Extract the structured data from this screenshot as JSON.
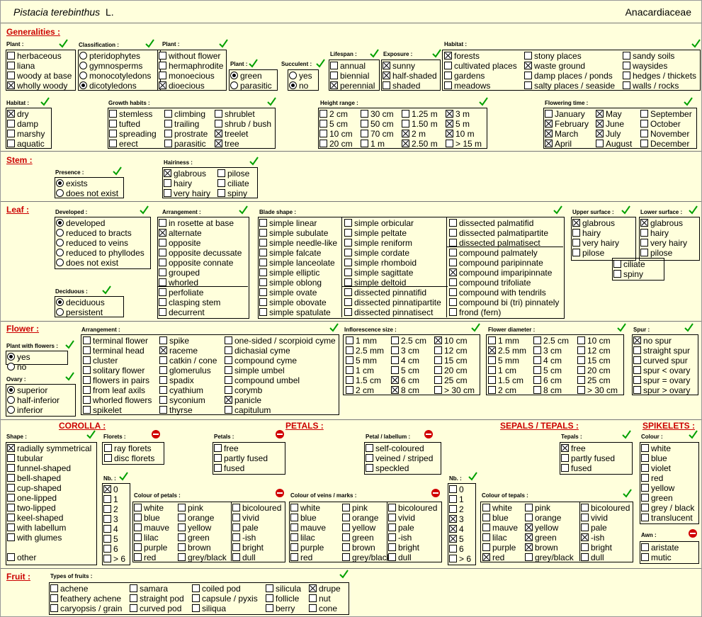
{
  "header": {
    "species": "Pistacia terebinthus",
    "author": "L.",
    "family": "Anacardiaceae"
  },
  "sections": {
    "generalities": "Generalities :",
    "stem": "Stem :",
    "leaf": "Leaf :",
    "flower": "Flower :",
    "fruit": "Fruit :",
    "corolla": "COROLLA :",
    "petals": "PETALS :",
    "sepals": "SEPALS / TEPALS :",
    "spikelets": "SPIKELETS :"
  },
  "labels": {
    "plant": "Plant :",
    "classification": "Classification :",
    "plant2": "Plant :",
    "plant3": "Plant :",
    "succulent": "Succulent :",
    "lifespan": "Lifespan :",
    "exposure": "Exposure :",
    "habitat": "Habitat :",
    "habitat2": "Habitat :",
    "growth": "Growth habits :",
    "height": "Height range :",
    "flowering": "Flowering time :",
    "presence": "Presence :",
    "hairiness": "Hairiness :",
    "developed": "Developed :",
    "arrangement": "Arrangement :",
    "blade": "Blade shape :",
    "upper": "Upper surface :",
    "lower": "Lower surface :",
    "deciduous": "Deciduous :",
    "withflowers": "Plant with flowers :",
    "ovary": "Ovary :",
    "farrangement": "Arrangement :",
    "inflsize": "Inflorescence size :",
    "fdiam": "Flower diameter :",
    "spur": "Spur :",
    "shape": "Shape :",
    "florets": "Florets :",
    "petals": "Petals :",
    "petallab": "Petal / labellum :",
    "tepals": "Tepals :",
    "colour": "Colour :",
    "awn": "Awn :",
    "nb": "Nb. :",
    "nb2": "Nb. :",
    "colpetals": "Colour of petals :",
    "colveins": "Colour of veins / marks :",
    "coltepals": "Colour of tepals :",
    "fruittypes": "Types of fruits :"
  },
  "items": {
    "plant1": [
      "herbaceous",
      "liana",
      "woody at base",
      "wholly woody"
    ],
    "classif": [
      "pteridophytes",
      "gymnosperms",
      "monocotyledons",
      "dicotyledons"
    ],
    "plant2": [
      "without flower",
      "hermaphrodite",
      "monoecious",
      "dioecious"
    ],
    "plant3": [
      "green",
      "parasitic"
    ],
    "succ": [
      "yes",
      "no"
    ],
    "life": [
      "annual",
      "biennial",
      "perennial"
    ],
    "expo": [
      "sunny",
      "half-shaded",
      "shaded"
    ],
    "hab1": [
      "forests",
      "cultivated places",
      "gardens",
      "meadows"
    ],
    "hab2": [
      "stony places",
      "waste ground",
      "damp places / ponds",
      "salty places / seaside"
    ],
    "hab3": [
      "sandy soils",
      "waysides",
      "hedges / thickets",
      "walls / rocks"
    ],
    "habB": [
      "dry",
      "damp",
      "marshy",
      "aquatic"
    ],
    "gr1": [
      "stemless",
      "tufted",
      "spreading",
      "erect"
    ],
    "gr2": [
      "climbing",
      "trailing",
      "prostrate",
      "parasitic"
    ],
    "gr3": [
      "shrublet",
      "shrub / bush",
      "treelet",
      "tree"
    ],
    "ht1": [
      "2 cm",
      "5 cm",
      "10 cm",
      "20 cm"
    ],
    "ht2": [
      "30 cm",
      "50 cm",
      "70 cm",
      "1 m"
    ],
    "ht3": [
      "1.25 m",
      "1.50 m",
      "2 m",
      "2.50 m"
    ],
    "ht4": [
      "3 m",
      "5 m",
      "10 m",
      "> 15 m"
    ],
    "fl1": [
      "January",
      "February",
      "March",
      "April"
    ],
    "fl2": [
      "May",
      "June",
      "July",
      "August"
    ],
    "fl3": [
      "September",
      "October",
      "November",
      "December"
    ],
    "presence": [
      "exists",
      "does not exist"
    ],
    "hair1": [
      "glabrous",
      "hairy",
      "very hairy"
    ],
    "hair2": [
      "pilose",
      "ciliate",
      "spiny"
    ],
    "dev": [
      "developed",
      "reduced to bracts",
      "reduced to veins",
      "reduced to phyllodes",
      "does not exist"
    ],
    "decid": [
      "deciduous",
      "persistent"
    ],
    "arr1": [
      "in rosette at base",
      "alternate",
      "opposite",
      "opposite decussate",
      "opposite connate",
      "grouped",
      "whorled"
    ],
    "arr2": [
      "perfoliate",
      "clasping stem",
      "decurrent"
    ],
    "bl1": [
      "simple linear",
      "simple subulate",
      "simple needle-like",
      "simple falcate",
      "simple lanceolate",
      "simple elliptic",
      "simple oblong",
      "simple ovate",
      "simple obovate",
      "simple spatulate"
    ],
    "bl2": [
      "simple orbicular",
      "simple peltate",
      "simple reniform",
      "simple cordate",
      "simple rhomboid",
      "simple sagittate",
      "simple deltoid"
    ],
    "bl2b": [
      "dissected pinnatifid",
      "dissected pinnatipartite",
      "dissected pinnatisect"
    ],
    "bl3": [
      "dissected palmatifid",
      "dissected palmatipartite",
      "dissected palmatisect"
    ],
    "bl3b": [
      "compound palmately",
      "compound paripinnate",
      "compound imparipinnate",
      "compound trifoliate",
      "compound with tendrils",
      "compound bi (tri) pinnately",
      "frond  (fern)"
    ],
    "upper": [
      "glabrous",
      "hairy",
      "very hairy",
      "pilose"
    ],
    "lower": [
      "glabrous",
      "hairy",
      "very hairy",
      "pilose"
    ],
    "ciliate": [
      "ciliate",
      "spiny"
    ],
    "wflowers": [
      "yes",
      "no"
    ],
    "ovary": [
      "superior",
      "half-inferior",
      "inferior"
    ],
    "fa1": [
      "terminal flower",
      "terminal head",
      "cluster",
      "solitary flower",
      "flowers in pairs",
      "from leaf axils",
      "whorled flowers",
      "spikelet"
    ],
    "fa2": [
      "spike",
      "raceme",
      "catkin / cone",
      "glomerulus",
      "spadix",
      "cyathium",
      "syconium",
      "thyrse"
    ],
    "fa3": [
      "one-sided / scorpioid cyme",
      "dichasial cyme",
      "compound cyme",
      "simple umbel",
      "compound umbel",
      "corymb",
      "panicle",
      "capitulum"
    ],
    "is1": [
      "1 mm",
      "2.5 mm",
      "5 mm",
      "1 cm",
      "1.5 cm",
      "2 cm"
    ],
    "is2": [
      "2.5 cm",
      "3 cm",
      "4 cm",
      "5 cm",
      "6 cm",
      "8 cm"
    ],
    "is3": [
      "10 cm",
      "12 cm",
      "15 cm",
      "20 cm",
      "25 cm",
      "> 30 cm"
    ],
    "fd1": [
      "1 mm",
      "2.5 mm",
      "5 mm",
      "1 cm",
      "1.5 cm",
      "2 cm"
    ],
    "fd2": [
      "2.5 cm",
      "3 cm",
      "4 cm",
      "5 cm",
      "6 cm",
      "8 cm"
    ],
    "fd3": [
      "10 cm",
      "12 cm",
      "15 cm",
      "20 cm",
      "25 cm",
      "> 30 cm"
    ],
    "spur": [
      "no spur",
      "straight spur",
      "curved spur",
      "spur < ovary",
      "spur = ovary",
      "spur > ovary"
    ],
    "shape": [
      "radially symmetrical",
      "tubular",
      "funnel-shaped",
      "bell-shaped",
      "cup-shaped",
      "one-lipped",
      "two-lipped",
      "keel-shaped",
      "with labellum",
      "with glumes"
    ],
    "shapeOther": "other",
    "florets": [
      "ray florets",
      "disc florets"
    ],
    "nb1": [
      "0",
      "1",
      "2",
      "3",
      "4",
      "5",
      "6",
      "> 6"
    ],
    "cp1": [
      "white",
      "blue",
      "mauve",
      "lilac",
      "purple",
      "red"
    ],
    "cp2": [
      "pink",
      "orange",
      "yellow",
      "green",
      "brown",
      "grey/black"
    ],
    "cp3": [
      "bicoloured",
      "vivid",
      "pale",
      "-ish",
      "bright",
      "dull"
    ],
    "petals": [
      "free",
      "partly fused",
      "fused"
    ],
    "petallab": [
      "self-coloured",
      "veined / striped",
      "speckled"
    ],
    "cv1": [
      "white",
      "blue",
      "mauve",
      "lilac",
      "purple",
      "red"
    ],
    "cv2": [
      "pink",
      "orange",
      "yellow",
      "green",
      "brown",
      "grey/black"
    ],
    "cv3": [
      "bicoloured",
      "vivid",
      "pale",
      "-ish",
      "bright",
      "dull"
    ],
    "nb2": [
      "0",
      "1",
      "2",
      "3",
      "4",
      "5",
      "6",
      "> 6"
    ],
    "tepals": [
      "free",
      "partly fused",
      "fused"
    ],
    "ct1": [
      "white",
      "blue",
      "mauve",
      "lilac",
      "purple",
      "red"
    ],
    "ct2": [
      "pink",
      "orange",
      "yellow",
      "green",
      "brown",
      "grey/black"
    ],
    "ct3": [
      "bicoloured",
      "vivid",
      "pale",
      "-ish",
      "bright",
      "dull"
    ],
    "spcol": [
      "white",
      "blue",
      "violet",
      "red",
      "yellow",
      "green",
      "grey / black",
      "translucent"
    ],
    "awn": [
      "aristate",
      "mutic"
    ],
    "fr1": [
      "achene",
      "feathery achene",
      "caryopsis / grain"
    ],
    "fr2": [
      "samara",
      "straight pod",
      "curved pod"
    ],
    "fr3": [
      "coiled pod",
      "capsule / pyxis",
      "siliqua"
    ],
    "fr4": [
      "silicula",
      "follicle",
      "berry"
    ],
    "fr5": [
      "drupe",
      "nut",
      "cone"
    ]
  },
  "checked": {
    "plant1": [
      3
    ],
    "classif": [
      3
    ],
    "plant2": [
      3
    ],
    "plant3": [
      0
    ],
    "succ": [
      1
    ],
    "life": [
      2
    ],
    "expo": [
      0,
      1
    ],
    "hab1": [
      0
    ],
    "hab2": [
      1
    ],
    "hab3": [],
    "habB": [
      0
    ],
    "gr1": [],
    "gr2": [],
    "gr3": [
      2,
      3
    ],
    "ht1": [],
    "ht2": [],
    "ht3": [
      2,
      3
    ],
    "ht4": [
      0,
      1,
      2
    ],
    "fl1": [
      1,
      2,
      3
    ],
    "fl2": [
      0,
      1,
      2
    ],
    "fl3": [],
    "presence": [
      0
    ],
    "hair1": [
      0
    ],
    "hair2": [],
    "dev": [
      0
    ],
    "decid": [
      0
    ],
    "arr1": [
      1
    ],
    "arr2": [],
    "bl1": [],
    "bl2": [],
    "bl2b": [],
    "bl3": [],
    "bl3b": [
      2
    ],
    "upper": [
      0
    ],
    "lower": [
      0
    ],
    "ciliate": [],
    "wflowers": [
      0
    ],
    "ovary": [
      0
    ],
    "fa1": [],
    "fa2": [
      1
    ],
    "fa3": [
      6
    ],
    "is1": [],
    "is2": [
      4,
      5
    ],
    "is3": [
      0
    ],
    "fd1": [
      1
    ],
    "fd2": [],
    "fd3": [],
    "spur": [
      0
    ],
    "shape": [
      0
    ],
    "florets": [],
    "nb1": [
      0
    ],
    "cp1": [],
    "cp2": [],
    "cp3": [],
    "petals": [],
    "petallab": [],
    "cv1": [],
    "cv2": [],
    "cv3": [],
    "nb2": [
      3,
      4,
      5
    ],
    "tepals": [
      0
    ],
    "ct1": [
      5
    ],
    "ct2": [
      2,
      3,
      4
    ],
    "ct3": [
      3
    ],
    "spcol": [],
    "awn": [],
    "fr1": [],
    "fr2": [],
    "fr3": [],
    "fr4": [],
    "fr5": [
      0
    ]
  },
  "colors": {
    "background": "#ffffdc",
    "heading": "#cc0000",
    "tick": "#00a000",
    "no_entry": "#d00000"
  }
}
